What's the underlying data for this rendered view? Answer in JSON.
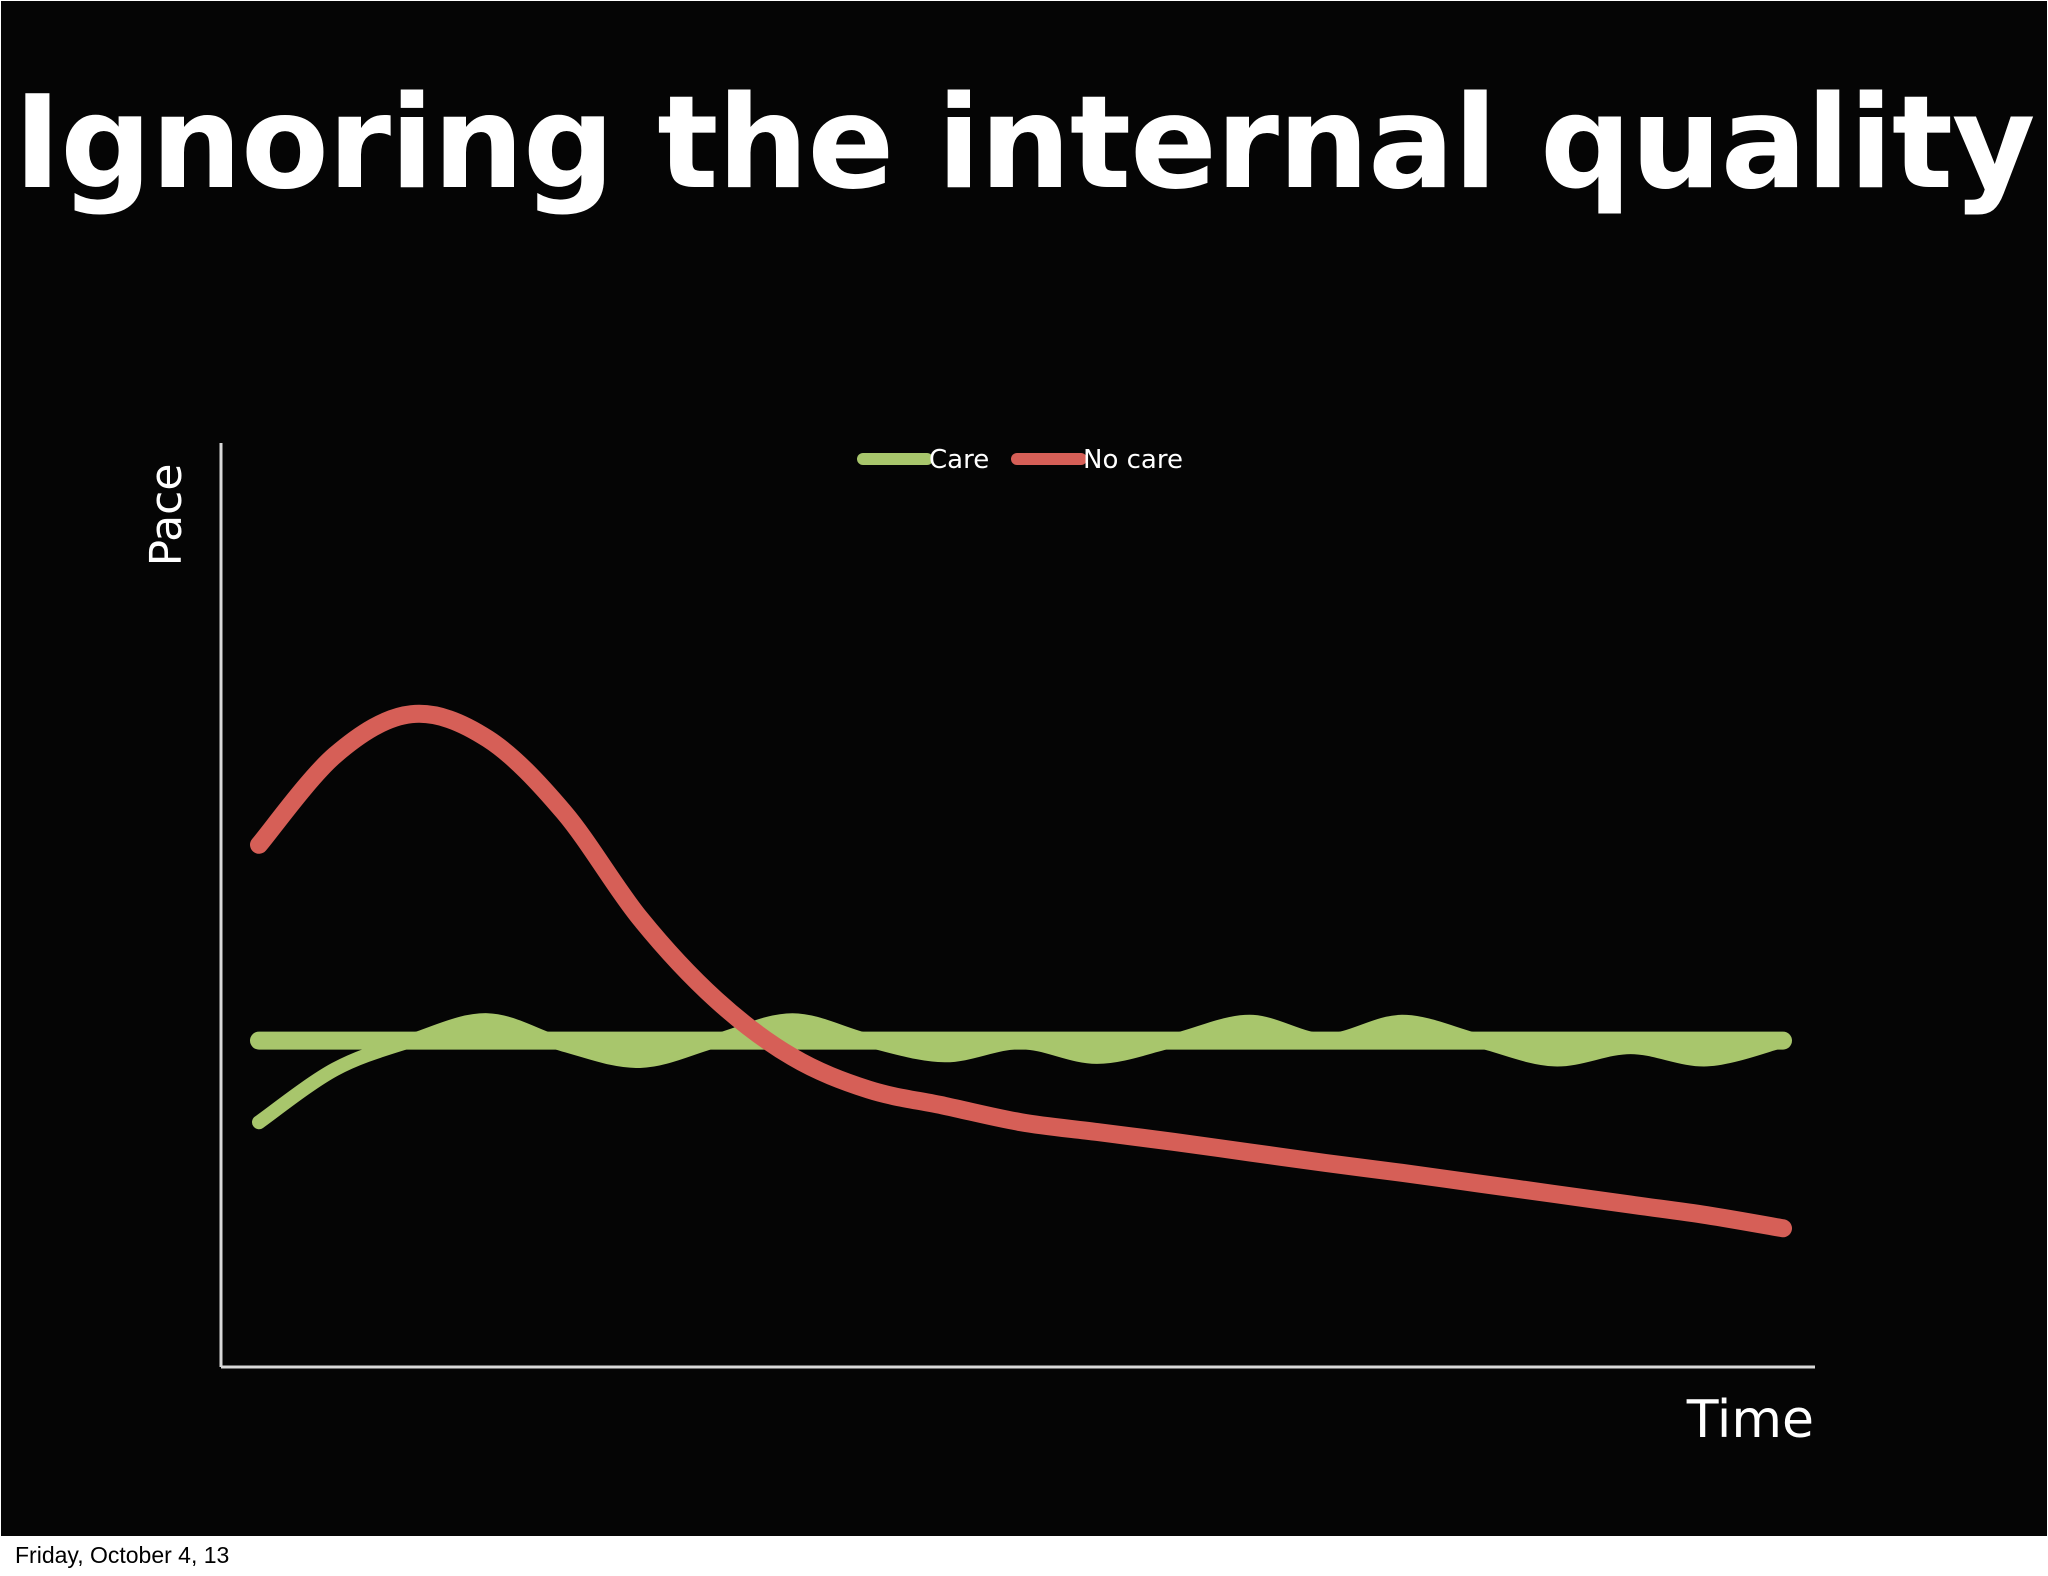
{
  "slide": {
    "title": "Ignoring the internal quality",
    "background": "#050505"
  },
  "footer": {
    "date": "Friday, October 4, 13"
  },
  "chart_data": {
    "type": "line",
    "title": "Ignoring the internal quality",
    "xlabel": "Time",
    "ylabel": "Pace",
    "xlim": [
      0,
      100
    ],
    "ylim": [
      0,
      100
    ],
    "grid": false,
    "legend_position": "top-center",
    "axis_color": "#d9d9d9",
    "series": [
      {
        "name": "Care",
        "color": "#a8c66c",
        "style": "flat-with-oscillation",
        "baseline": [
          [
            0,
            40
          ],
          [
            100,
            40
          ]
        ],
        "values": [
          [
            0,
            30
          ],
          [
            5,
            36.5
          ],
          [
            10,
            40
          ],
          [
            15,
            42.5
          ],
          [
            20,
            39.5
          ],
          [
            25,
            37.5
          ],
          [
            30,
            40
          ],
          [
            35,
            42.5
          ],
          [
            40,
            40
          ],
          [
            45,
            38.2
          ],
          [
            50,
            39.8
          ],
          [
            55,
            38
          ],
          [
            60,
            40
          ],
          [
            65,
            42.3
          ],
          [
            70,
            40
          ],
          [
            75,
            42.3
          ],
          [
            80,
            40
          ],
          [
            85,
            37.7
          ],
          [
            90,
            39.2
          ],
          [
            95,
            37.7
          ],
          [
            100,
            40
          ]
        ]
      },
      {
        "name": "No care",
        "color": "#d65f57",
        "style": "line",
        "values": [
          [
            0,
            64
          ],
          [
            5,
            75
          ],
          [
            10,
            80
          ],
          [
            15,
            77
          ],
          [
            20,
            68
          ],
          [
            25,
            55
          ],
          [
            30,
            45
          ],
          [
            35,
            38
          ],
          [
            40,
            34
          ],
          [
            45,
            32
          ],
          [
            50,
            30
          ],
          [
            55,
            28.8
          ],
          [
            60,
            27.6
          ],
          [
            65,
            26.3
          ],
          [
            70,
            25
          ],
          [
            75,
            23.8
          ],
          [
            80,
            22.5
          ],
          [
            85,
            21.2
          ],
          [
            90,
            19.9
          ],
          [
            95,
            18.6
          ],
          [
            100,
            17
          ]
        ]
      }
    ]
  }
}
